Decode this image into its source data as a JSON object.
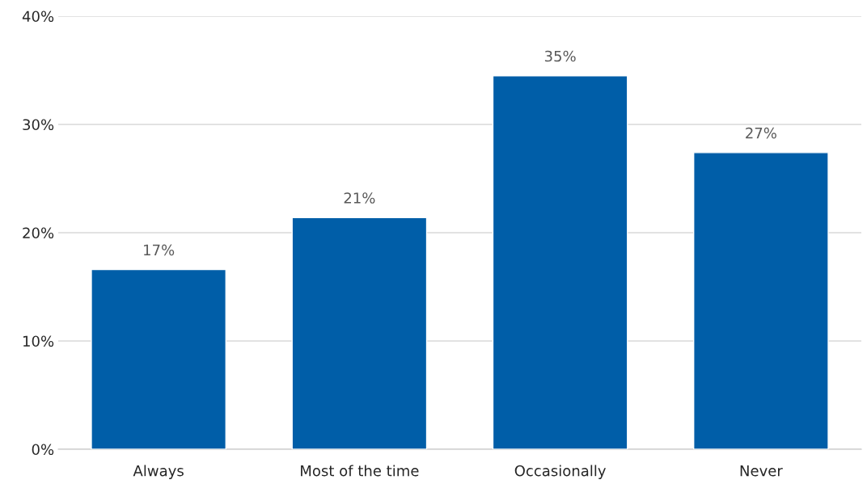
{
  "chart_data": {
    "type": "bar",
    "categories": [
      "Always",
      "Most of the time",
      "Occasionally",
      "Never"
    ],
    "values": [
      16.6,
      21.4,
      34.5,
      27.4
    ],
    "value_labels": [
      "17%",
      "21%",
      "35%",
      "27%"
    ],
    "color": "#005ea8",
    "ylim": [
      0,
      40
    ],
    "yticks": [
      {
        "value": 0,
        "label": "0%"
      },
      {
        "value": 10,
        "label": "10%"
      },
      {
        "value": 20,
        "label": "20%"
      },
      {
        "value": 30,
        "label": "30%"
      },
      {
        "value": 40,
        "label": "40%"
      }
    ],
    "grid": "y",
    "legend": false
  }
}
